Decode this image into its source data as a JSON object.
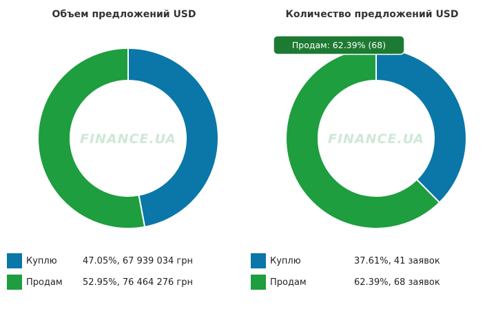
{
  "chart_data": [
    {
      "type": "pie",
      "title": "Объем предложений USD",
      "colors": [
        "#0a77a8",
        "#1e9e3e"
      ],
      "slices": [
        {
          "label": "Куплю",
          "percent": 47.05,
          "value_text": "47.05%, 67 939 034 грн"
        },
        {
          "label": "Продам",
          "percent": 52.95,
          "value_text": "52.95%, 76 464 276 грн"
        }
      ],
      "watermark": "FINANCE.UA"
    },
    {
      "type": "pie",
      "title": "Количество предложений USD",
      "colors": [
        "#0a77a8",
        "#1e9e3e"
      ],
      "slices": [
        {
          "label": "Куплю",
          "percent": 37.61,
          "value_text": "37.61%, 41 заявок"
        },
        {
          "label": "Продам",
          "percent": 62.39,
          "value_text": "62.39%, 68 заявок"
        }
      ],
      "tooltip": "Продам: 62.39% (68)",
      "watermark": "FINANCE.UA"
    }
  ]
}
